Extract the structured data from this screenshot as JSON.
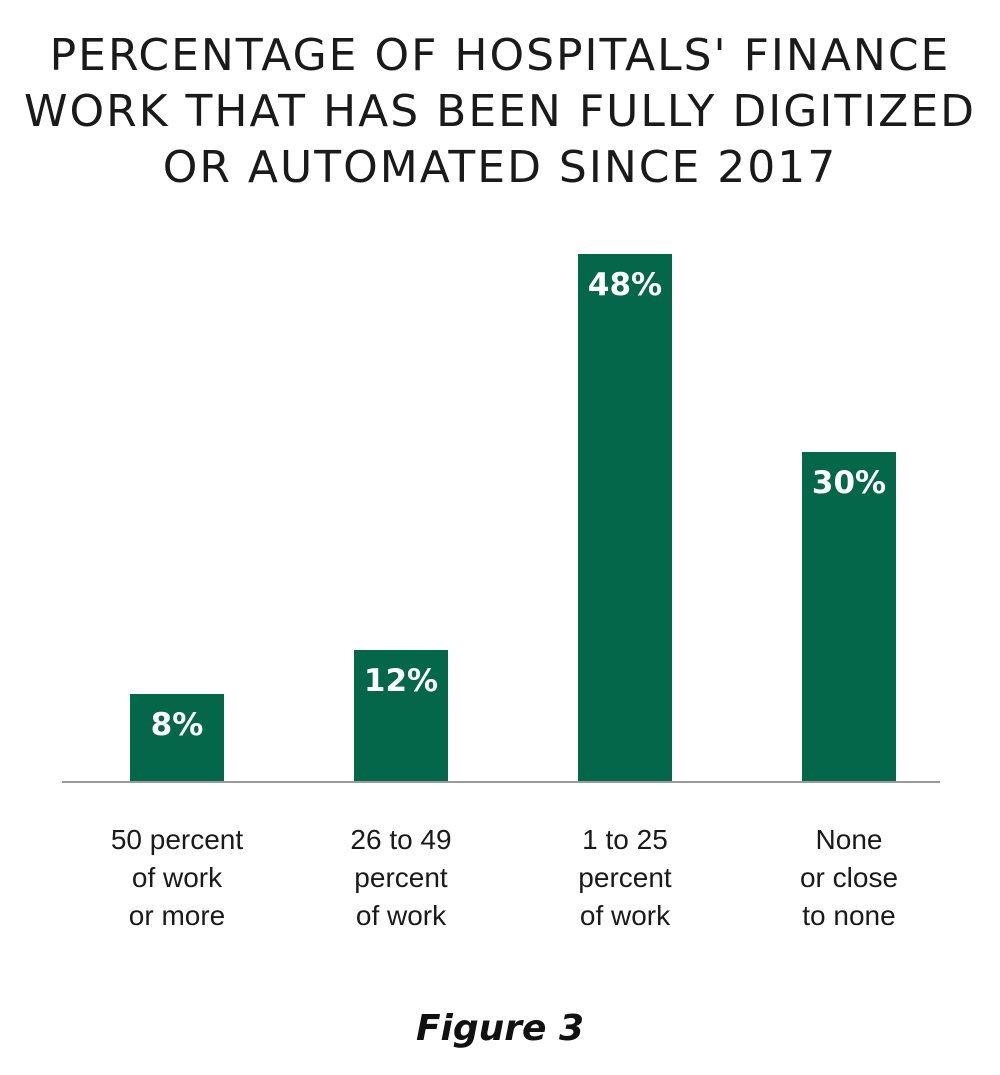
{
  "title_lines": [
    "PERCENTAGE OF HOSPITALS' FINANCE",
    "WORK THAT HAS BEEN FULLY DIGITIZED",
    "OR AUTOMATED SINCE 2017"
  ],
  "caption": "Figure 3",
  "colors": {
    "bar": "#05674a",
    "axis": "#9a9a9a",
    "bar_label": "#ffffff",
    "category_text": "#1a1a1a"
  },
  "chart_data": {
    "type": "bar",
    "title": "PERCENTAGE OF HOSPITALS' FINANCE WORK THAT HAS BEEN FULLY DIGITIZED OR AUTOMATED SINCE 2017",
    "categories": [
      [
        "50 percent",
        "of work",
        "or more"
      ],
      [
        "26 to 49",
        "percent",
        "of work"
      ],
      [
        "1 to 25",
        "percent",
        "of work"
      ],
      [
        "None",
        "or close",
        "to none"
      ]
    ],
    "values": [
      8,
      12,
      48,
      30
    ],
    "data_labels": [
      "8%",
      "12%",
      "48%",
      "30%"
    ],
    "unit": "%",
    "xlabel": "",
    "ylabel": "",
    "ylim": [
      0,
      48
    ],
    "grid": false,
    "legend": "none"
  }
}
